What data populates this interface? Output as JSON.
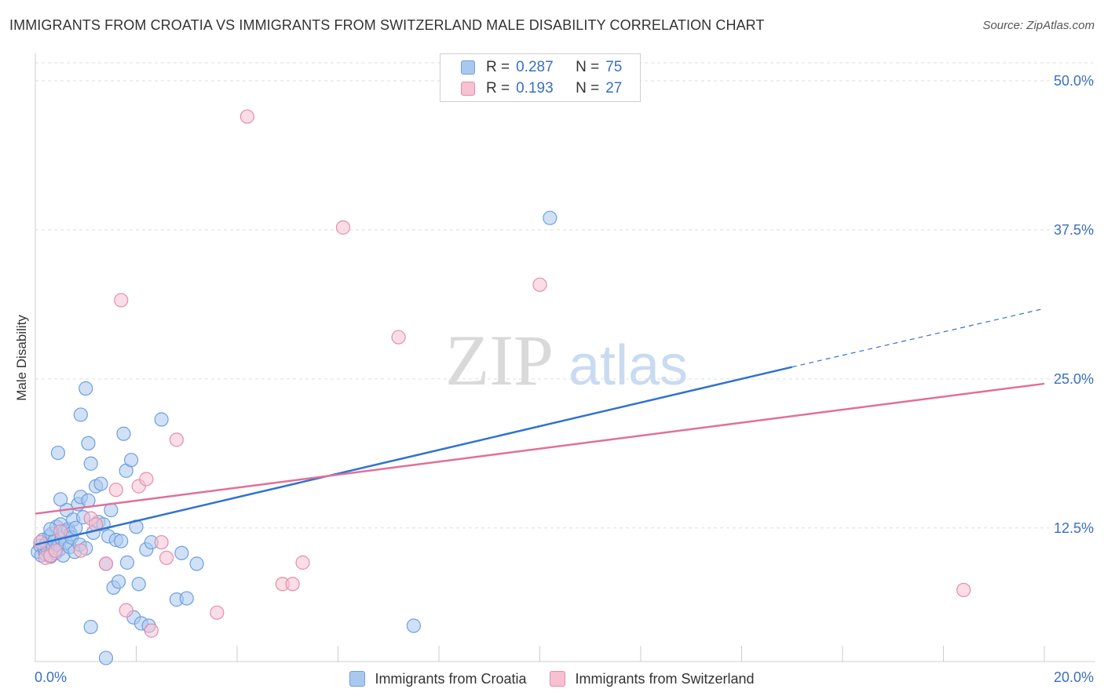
{
  "colors": {
    "croatia_fill": "#a9c8f0",
    "croatia_stroke": "#6f9fdc",
    "croatia_line": "#2f73d0",
    "switzerland_fill": "#f6c1d1",
    "switzerland_stroke": "#e58ea9",
    "switzerland_line": "#e07099",
    "axis_text": "#3a6fc4",
    "grid": "#dddddd"
  },
  "chart_data": {
    "type": "scatter",
    "title": "IMMIGRANTS FROM CROATIA VS IMMIGRANTS FROM SWITZERLAND MALE DISABILITY CORRELATION CHART",
    "source": "Source: ZipAtlas.com",
    "xlabel": "",
    "ylabel": "Male Disability",
    "xlim": [
      0,
      20
    ],
    "ylim": [
      1.3,
      52.3
    ],
    "x_tick_labels": [
      "0.0%",
      "20.0%"
    ],
    "y_ticks": [
      12.5,
      25.0,
      37.5,
      50.0
    ],
    "y_tick_labels": [
      "12.5%",
      "25.0%",
      "37.5%",
      "50.0%"
    ],
    "watermark": {
      "zip": "ZIP",
      "atlas": "atlas"
    },
    "legend": {
      "rows": [
        {
          "r_label": "R =",
          "r_value": "0.287",
          "n_label": "N =",
          "n_value": "75"
        },
        {
          "r_label": "R =",
          "r_value": "0.193",
          "n_label": "N =",
          "n_value": "27"
        }
      ]
    },
    "series": [
      {
        "name": "Immigrants from Croatia",
        "trend": {
          "x0": 0,
          "y0": 11.1,
          "x1": 15,
          "y1": 26.0,
          "dash_x1": 20,
          "dash_y1": 30.9
        },
        "points": [
          [
            0.05,
            10.5
          ],
          [
            0.1,
            11.0
          ],
          [
            0.12,
            10.2
          ],
          [
            0.15,
            11.5
          ],
          [
            0.18,
            10.8
          ],
          [
            0.2,
            10.3
          ],
          [
            0.22,
            11.2
          ],
          [
            0.25,
            10.6
          ],
          [
            0.28,
            11.8
          ],
          [
            0.3,
            10.1
          ],
          [
            0.32,
            12.0
          ],
          [
            0.35,
            10.9
          ],
          [
            0.38,
            11.4
          ],
          [
            0.4,
            10.4
          ],
          [
            0.42,
            12.6
          ],
          [
            0.45,
            11.0
          ],
          [
            0.48,
            10.7
          ],
          [
            0.5,
            12.8
          ],
          [
            0.52,
            11.6
          ],
          [
            0.55,
            10.2
          ],
          [
            0.58,
            12.2
          ],
          [
            0.6,
            11.3
          ],
          [
            0.62,
            14.0
          ],
          [
            0.65,
            12.4
          ],
          [
            0.68,
            10.9
          ],
          [
            0.7,
            12.0
          ],
          [
            0.72,
            11.7
          ],
          [
            0.75,
            13.2
          ],
          [
            0.78,
            10.5
          ],
          [
            0.8,
            12.5
          ],
          [
            0.85,
            14.5
          ],
          [
            0.88,
            11.1
          ],
          [
            0.9,
            15.1
          ],
          [
            0.95,
            13.4
          ],
          [
            1.0,
            10.8
          ],
          [
            1.05,
            14.8
          ],
          [
            1.1,
            17.9
          ],
          [
            1.15,
            12.1
          ],
          [
            1.2,
            16.0
          ],
          [
            1.25,
            13.0
          ],
          [
            1.3,
            16.2
          ],
          [
            1.35,
            12.8
          ],
          [
            1.4,
            9.5
          ],
          [
            1.45,
            11.8
          ],
          [
            1.5,
            14.0
          ],
          [
            1.55,
            7.5
          ],
          [
            1.6,
            11.5
          ],
          [
            1.65,
            8.0
          ],
          [
            1.7,
            11.4
          ],
          [
            1.75,
            20.4
          ],
          [
            1.8,
            17.3
          ],
          [
            1.82,
            9.6
          ],
          [
            1.9,
            18.2
          ],
          [
            1.95,
            5.0
          ],
          [
            2.0,
            12.6
          ],
          [
            2.05,
            7.8
          ],
          [
            2.1,
            4.5
          ],
          [
            2.2,
            10.7
          ],
          [
            2.25,
            4.3
          ],
          [
            2.3,
            11.3
          ],
          [
            2.5,
            21.6
          ],
          [
            2.8,
            6.5
          ],
          [
            2.9,
            10.4
          ],
          [
            3.0,
            6.6
          ],
          [
            3.2,
            9.5
          ],
          [
            1.0,
            24.2
          ],
          [
            0.9,
            22.0
          ],
          [
            1.05,
            19.6
          ],
          [
            0.45,
            18.8
          ],
          [
            0.5,
            14.9
          ],
          [
            0.3,
            12.4
          ],
          [
            1.1,
            4.2
          ],
          [
            1.4,
            1.6
          ],
          [
            7.5,
            4.3
          ],
          [
            10.2,
            38.5
          ]
        ]
      },
      {
        "name": "Immigrants from Switzerland",
        "trend": {
          "x0": 0,
          "y0": 13.7,
          "x1": 20,
          "y1": 24.6
        },
        "points": [
          [
            0.1,
            11.3
          ],
          [
            0.2,
            10.0
          ],
          [
            0.3,
            10.2
          ],
          [
            0.5,
            12.2
          ],
          [
            0.9,
            10.6
          ],
          [
            1.1,
            13.3
          ],
          [
            1.2,
            12.8
          ],
          [
            1.4,
            9.5
          ],
          [
            1.6,
            15.7
          ],
          [
            1.7,
            31.6
          ],
          [
            1.8,
            5.6
          ],
          [
            2.05,
            16.0
          ],
          [
            2.2,
            16.6
          ],
          [
            2.3,
            3.9
          ],
          [
            2.5,
            11.3
          ],
          [
            2.6,
            10.0
          ],
          [
            2.8,
            19.9
          ],
          [
            3.6,
            5.4
          ],
          [
            4.2,
            47.0
          ],
          [
            4.9,
            7.8
          ],
          [
            5.1,
            7.8
          ],
          [
            5.3,
            9.6
          ],
          [
            6.1,
            37.7
          ],
          [
            7.2,
            28.5
          ],
          [
            10.0,
            32.9
          ],
          [
            18.4,
            7.3
          ],
          [
            0.4,
            10.6
          ]
        ]
      }
    ]
  }
}
